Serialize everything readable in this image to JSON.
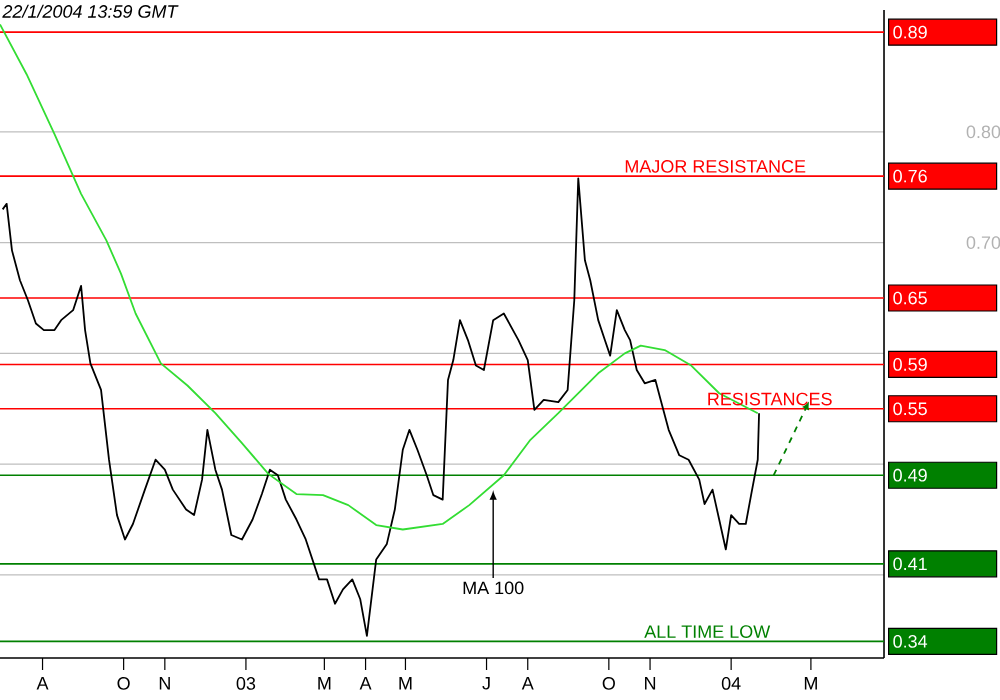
{
  "chart_data": {
    "type": "line",
    "xlim": [
      "2002-06-30",
      "2004-04-25"
    ],
    "ylim": [
      0.325,
      0.91
    ],
    "xticks": [
      {
        "value": "2002-08",
        "label": "A"
      },
      {
        "value": "2002-10",
        "label": "O"
      },
      {
        "value": "2002-11",
        "label": "N"
      },
      {
        "value": "2003-01",
        "label": "03"
      },
      {
        "value": "2003-03",
        "label": "M"
      },
      {
        "value": "2003-04",
        "label": "A"
      },
      {
        "value": "2003-05",
        "label": "M"
      },
      {
        "value": "2003-07",
        "label": "J"
      },
      {
        "value": "2003-08",
        "label": "A"
      },
      {
        "value": "2003-10",
        "label": "O"
      },
      {
        "value": "2003-11",
        "label": "N"
      },
      {
        "value": "2004-01",
        "label": "04"
      },
      {
        "value": "2004-03",
        "label": "M"
      }
    ],
    "yticks": [
      {
        "value": 0.4,
        "label": null
      },
      {
        "value": 0.5,
        "label": null
      },
      {
        "value": 0.6,
        "label": null
      },
      {
        "value": 0.7,
        "label": "0.70"
      },
      {
        "value": 0.8,
        "label": "0.80"
      }
    ],
    "grid": "y",
    "series": [
      {
        "color": "#000000",
        "x": [
          "2002-07-02",
          "2002-07-05",
          "2002-07-09",
          "2002-07-15",
          "2002-07-21",
          "2002-07-27",
          "2002-08-02",
          "2002-08-10",
          "2002-08-15",
          "2002-08-24",
          "2002-08-30",
          "2002-09-02",
          "2002-09-06",
          "2002-09-14",
          "2002-09-20",
          "2002-09-26",
          "2002-10-02",
          "2002-10-08",
          "2002-10-17",
          "2002-10-25",
          "2002-11-01",
          "2002-11-07",
          "2002-11-17",
          "2002-11-23",
          "2002-11-29",
          "2002-12-03",
          "2002-12-09",
          "2002-12-14",
          "2002-12-21",
          "2002-12-29",
          "2003-01-06",
          "2003-01-13",
          "2003-01-19",
          "2003-01-25",
          "2003-01-31",
          "2003-02-08",
          "2003-02-15",
          "2003-02-25",
          "2003-03-03",
          "2003-03-09",
          "2003-03-15",
          "2003-03-22",
          "2003-03-28",
          "2003-04-02",
          "2003-04-09",
          "2003-04-17",
          "2003-04-23",
          "2003-04-29",
          "2003-05-04",
          "2003-05-10",
          "2003-05-17",
          "2003-05-22",
          "2003-05-29",
          "2003-06-02",
          "2003-06-06",
          "2003-06-11",
          "2003-06-17",
          "2003-06-23",
          "2003-06-29",
          "2003-07-06",
          "2003-07-14",
          "2003-07-25",
          "2003-08-01",
          "2003-08-06",
          "2003-08-13",
          "2003-08-24",
          "2003-08-31",
          "2003-09-05",
          "2003-09-08",
          "2003-09-13",
          "2003-09-17",
          "2003-09-23",
          "2003-09-28",
          "2003-10-02",
          "2003-10-07",
          "2003-10-13",
          "2003-10-17",
          "2003-10-22",
          "2003-10-28",
          "2003-11-05",
          "2003-11-09",
          "2003-11-15",
          "2003-11-23",
          "2003-11-30",
          "2003-12-08",
          "2003-12-12",
          "2003-12-18",
          "2003-12-23",
          "2003-12-28",
          "2004-01-01",
          "2004-01-07",
          "2004-01-12",
          "2004-01-16",
          "2004-01-21",
          "2004-01-22"
        ],
        "values": [
          0.73,
          0.735,
          0.693,
          0.666,
          0.648,
          0.627,
          0.621,
          0.621,
          0.63,
          0.639,
          0.661,
          0.621,
          0.591,
          0.567,
          0.504,
          0.454,
          0.432,
          0.446,
          0.477,
          0.504,
          0.495,
          0.477,
          0.459,
          0.454,
          0.486,
          0.531,
          0.495,
          0.477,
          0.436,
          0.432,
          0.45,
          0.473,
          0.495,
          0.49,
          0.468,
          0.45,
          0.432,
          0.396,
          0.396,
          0.374,
          0.387,
          0.396,
          0.378,
          0.345,
          0.414,
          0.428,
          0.459,
          0.513,
          0.531,
          0.513,
          0.49,
          0.472,
          0.468,
          0.576,
          0.594,
          0.63,
          0.612,
          0.589,
          0.585,
          0.63,
          0.636,
          0.612,
          0.594,
          0.549,
          0.558,
          0.556,
          0.567,
          0.648,
          0.758,
          0.684,
          0.666,
          0.63,
          0.612,
          0.598,
          0.639,
          0.621,
          0.612,
          0.585,
          0.573,
          0.576,
          0.558,
          0.531,
          0.508,
          0.504,
          0.486,
          0.464,
          0.477,
          0.45,
          0.423,
          0.454,
          0.446,
          0.446,
          0.472,
          0.504,
          0.546
        ]
      },
      {
        "color": "#33dd33",
        "x": [
          "2002-06-30",
          "2002-07-20",
          "2002-08-10",
          "2002-08-30",
          "2002-09-18",
          "2002-09-29",
          "2002-10-10",
          "2002-10-29",
          "2002-11-18",
          "2002-12-09",
          "2002-12-29",
          "2003-01-18",
          "2003-02-08",
          "2003-02-28",
          "2003-03-19",
          "2003-04-09",
          "2003-04-29",
          "2003-05-29",
          "2003-06-18",
          "2003-07-14",
          "2003-08-03",
          "2003-08-24",
          "2003-09-23",
          "2003-10-13",
          "2003-10-25",
          "2003-11-12",
          "2003-12-02",
          "2003-12-23",
          "2004-01-21"
        ],
        "values": [
          0.897,
          0.852,
          0.798,
          0.744,
          0.702,
          0.672,
          0.636,
          0.591,
          0.571,
          0.546,
          0.519,
          0.491,
          0.473,
          0.472,
          0.463,
          0.445,
          0.441,
          0.446,
          0.463,
          0.49,
          0.522,
          0.546,
          0.582,
          0.6,
          0.607,
          0.603,
          0.589,
          0.564,
          0.546
        ]
      },
      {
        "color": "#008000",
        "line_style": "dashed",
        "x": [
          "2004-02-02",
          "2004-02-26"
        ],
        "values": [
          0.49,
          0.55
        ]
      }
    ],
    "ref_lines": [
      {
        "axis": "y",
        "value": 0.89,
        "color": "#ff0000",
        "label": "0.89"
      },
      {
        "axis": "y",
        "value": 0.76,
        "color": "#ff0000",
        "label": "0.76"
      },
      {
        "axis": "y",
        "value": 0.65,
        "color": "#ff0000",
        "label": "0.65"
      },
      {
        "axis": "y",
        "value": 0.59,
        "color": "#ff0000",
        "label": "0.59"
      },
      {
        "axis": "y",
        "value": 0.55,
        "color": "#ff0000",
        "label": "0.55"
      },
      {
        "axis": "y",
        "value": 0.49,
        "color": "#008000",
        "label": "0.49"
      },
      {
        "axis": "y",
        "value": 0.41,
        "color": "#008000",
        "label": "0.41"
      },
      {
        "axis": "y",
        "value": 0.34,
        "color": "#008000",
        "label": "0.34"
      }
    ],
    "annotations": [
      "22/1/2004 13:59 GMT",
      {
        "text": "MAJOR RESISTANCE",
        "x": "2003-12-20",
        "y": 0.76
      },
      {
        "text": "RESISTANCES",
        "x": "2004-01-30",
        "y": 0.55
      },
      {
        "text": "ALL TIME LOW",
        "x": "2003-12-14",
        "y": 0.34
      },
      {
        "text": "MA 100",
        "x": "2003-07-06",
        "y": 0.482
      }
    ]
  }
}
